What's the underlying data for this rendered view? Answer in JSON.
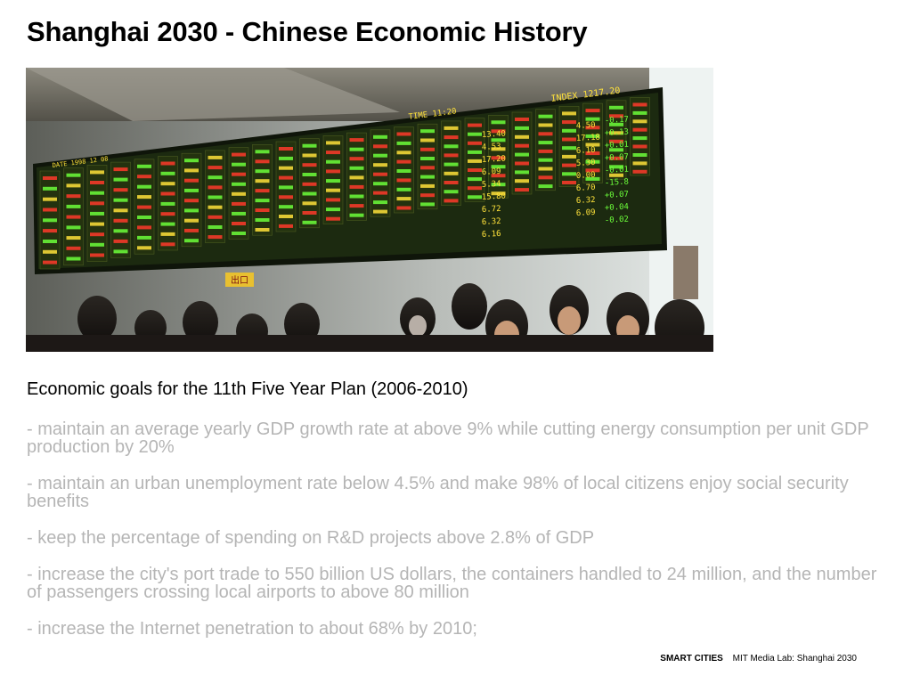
{
  "slide": {
    "title": "Shanghai 2030 - Chinese Economic History",
    "subtitle": "Economic goals for the 11th Five Year Plan (2006-2010)",
    "goals": [
      "- maintain an average yearly GDP growth rate at above 9% while cutting energy consumption per unit GDP production by 20%",
      "- maintain an urban unemployment rate below 4.5% and make 98% of local citizens enjoy social security benefits",
      "- keep the percentage of spending on R&D projects above 2.8% of GDP",
      "- increase the city's port trade to 550 billion US dollars, the containers handled to 24 million, and the number of passengers crossing local airports to above 80 million",
      "- increase the Internet penetration to about 68% by 2010;"
    ]
  },
  "photo": {
    "board_header_left": "DATE 1998 12 08",
    "board_header_mid": "TIME 11:20",
    "board_header_right": "INDEX 1217.20",
    "board_values": [
      "13.40",
      "4.53",
      "17.20",
      "6.09",
      "5.34",
      "15.80",
      "6.72",
      "6.32",
      "6.16",
      "4.50",
      "17.18",
      "6.10",
      "5.30",
      "0.00",
      "6.70",
      "6.32",
      "6.09"
    ],
    "board_changes": [
      "-0.17",
      "+0.13",
      "+0.01",
      "+0.07",
      "-0.01",
      "-15.8",
      "+0.07",
      "+0.04",
      "-0.02"
    ],
    "sign": "出口",
    "colors": {
      "board_bg": "#1c2a10",
      "board_green": "#6cff3a",
      "board_yellow": "#ffe23a",
      "board_red": "#ff3a2a",
      "wall": "#d8dcd8"
    }
  },
  "footer": {
    "brand": "SMART CITIES",
    "source": "MIT Media Lab: Shanghai 2030"
  }
}
